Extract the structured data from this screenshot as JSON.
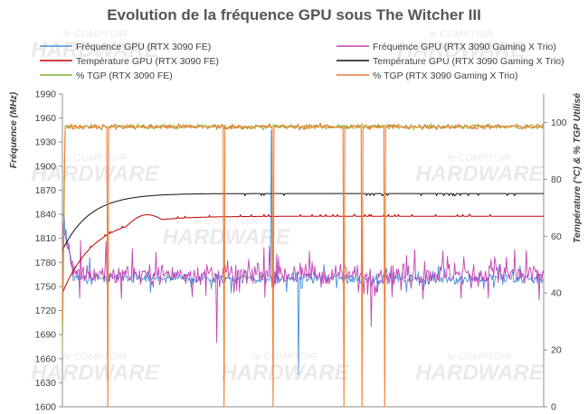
{
  "chart_data": {
    "type": "line",
    "title": "Evolution de la fréquence GPU sous The Witcher III",
    "ylabel": "Fréquence (MHz)",
    "y2label": "Température (°C) & % TGP Utilisé",
    "ylim": [
      1600,
      1990
    ],
    "y2lim": [
      0,
      110
    ],
    "y_ticks": [
      1600,
      1630,
      1660,
      1690,
      1720,
      1750,
      1780,
      1810,
      1840,
      1870,
      1900,
      1930,
      1960,
      1990
    ],
    "y2_ticks": [
      0,
      20,
      40,
      60,
      80,
      100
    ],
    "xlim": [
      0,
      530
    ],
    "grid": false,
    "legend_position": "top",
    "series": [
      {
        "name": "Fréquence GPU (RTX 3090 FE)",
        "axis": "left",
        "color": "#4a8fd6",
        "base": 1760,
        "noise": 12,
        "start": 1840,
        "spikes": [
          [
            230,
            1945
          ],
          [
            260,
            1640
          ]
        ]
      },
      {
        "name": "Fréquence GPU (RTX 3090 Gaming X Trio)",
        "axis": "left",
        "color": "#c044b4",
        "base": 1765,
        "noise": 22,
        "start": 1830,
        "spikes": [
          [
            170,
            1680
          ],
          [
            330,
            1820
          ],
          [
            340,
            1700
          ]
        ]
      },
      {
        "name": "Température GPU (RTX 3090 FE)",
        "axis": "right",
        "color": "#c00000",
        "start": 40,
        "plateau": 67,
        "peak": 69.5,
        "tau": 35
      },
      {
        "name": "Température GPU (RTX 3090 Gaming X Trio)",
        "axis": "right",
        "color": "#111111",
        "start": 55,
        "plateau": 75,
        "tau": 30
      },
      {
        "name": "% TGP (RTX 3090 FE)",
        "axis": "right",
        "color": "#7cb82f",
        "base": 98.5,
        "noise": 1.5
      },
      {
        "name": "% TGP (RTX 3090 Gaming X Trio)",
        "axis": "right",
        "color": "#ed7d31",
        "base": 98.5,
        "noise": 1.6,
        "dips": [
          50,
          178,
          232,
          310,
          330,
          355
        ]
      }
    ]
  },
  "watermark": {
    "small": "le COMPTOIR",
    "big": "HARDWARE"
  }
}
